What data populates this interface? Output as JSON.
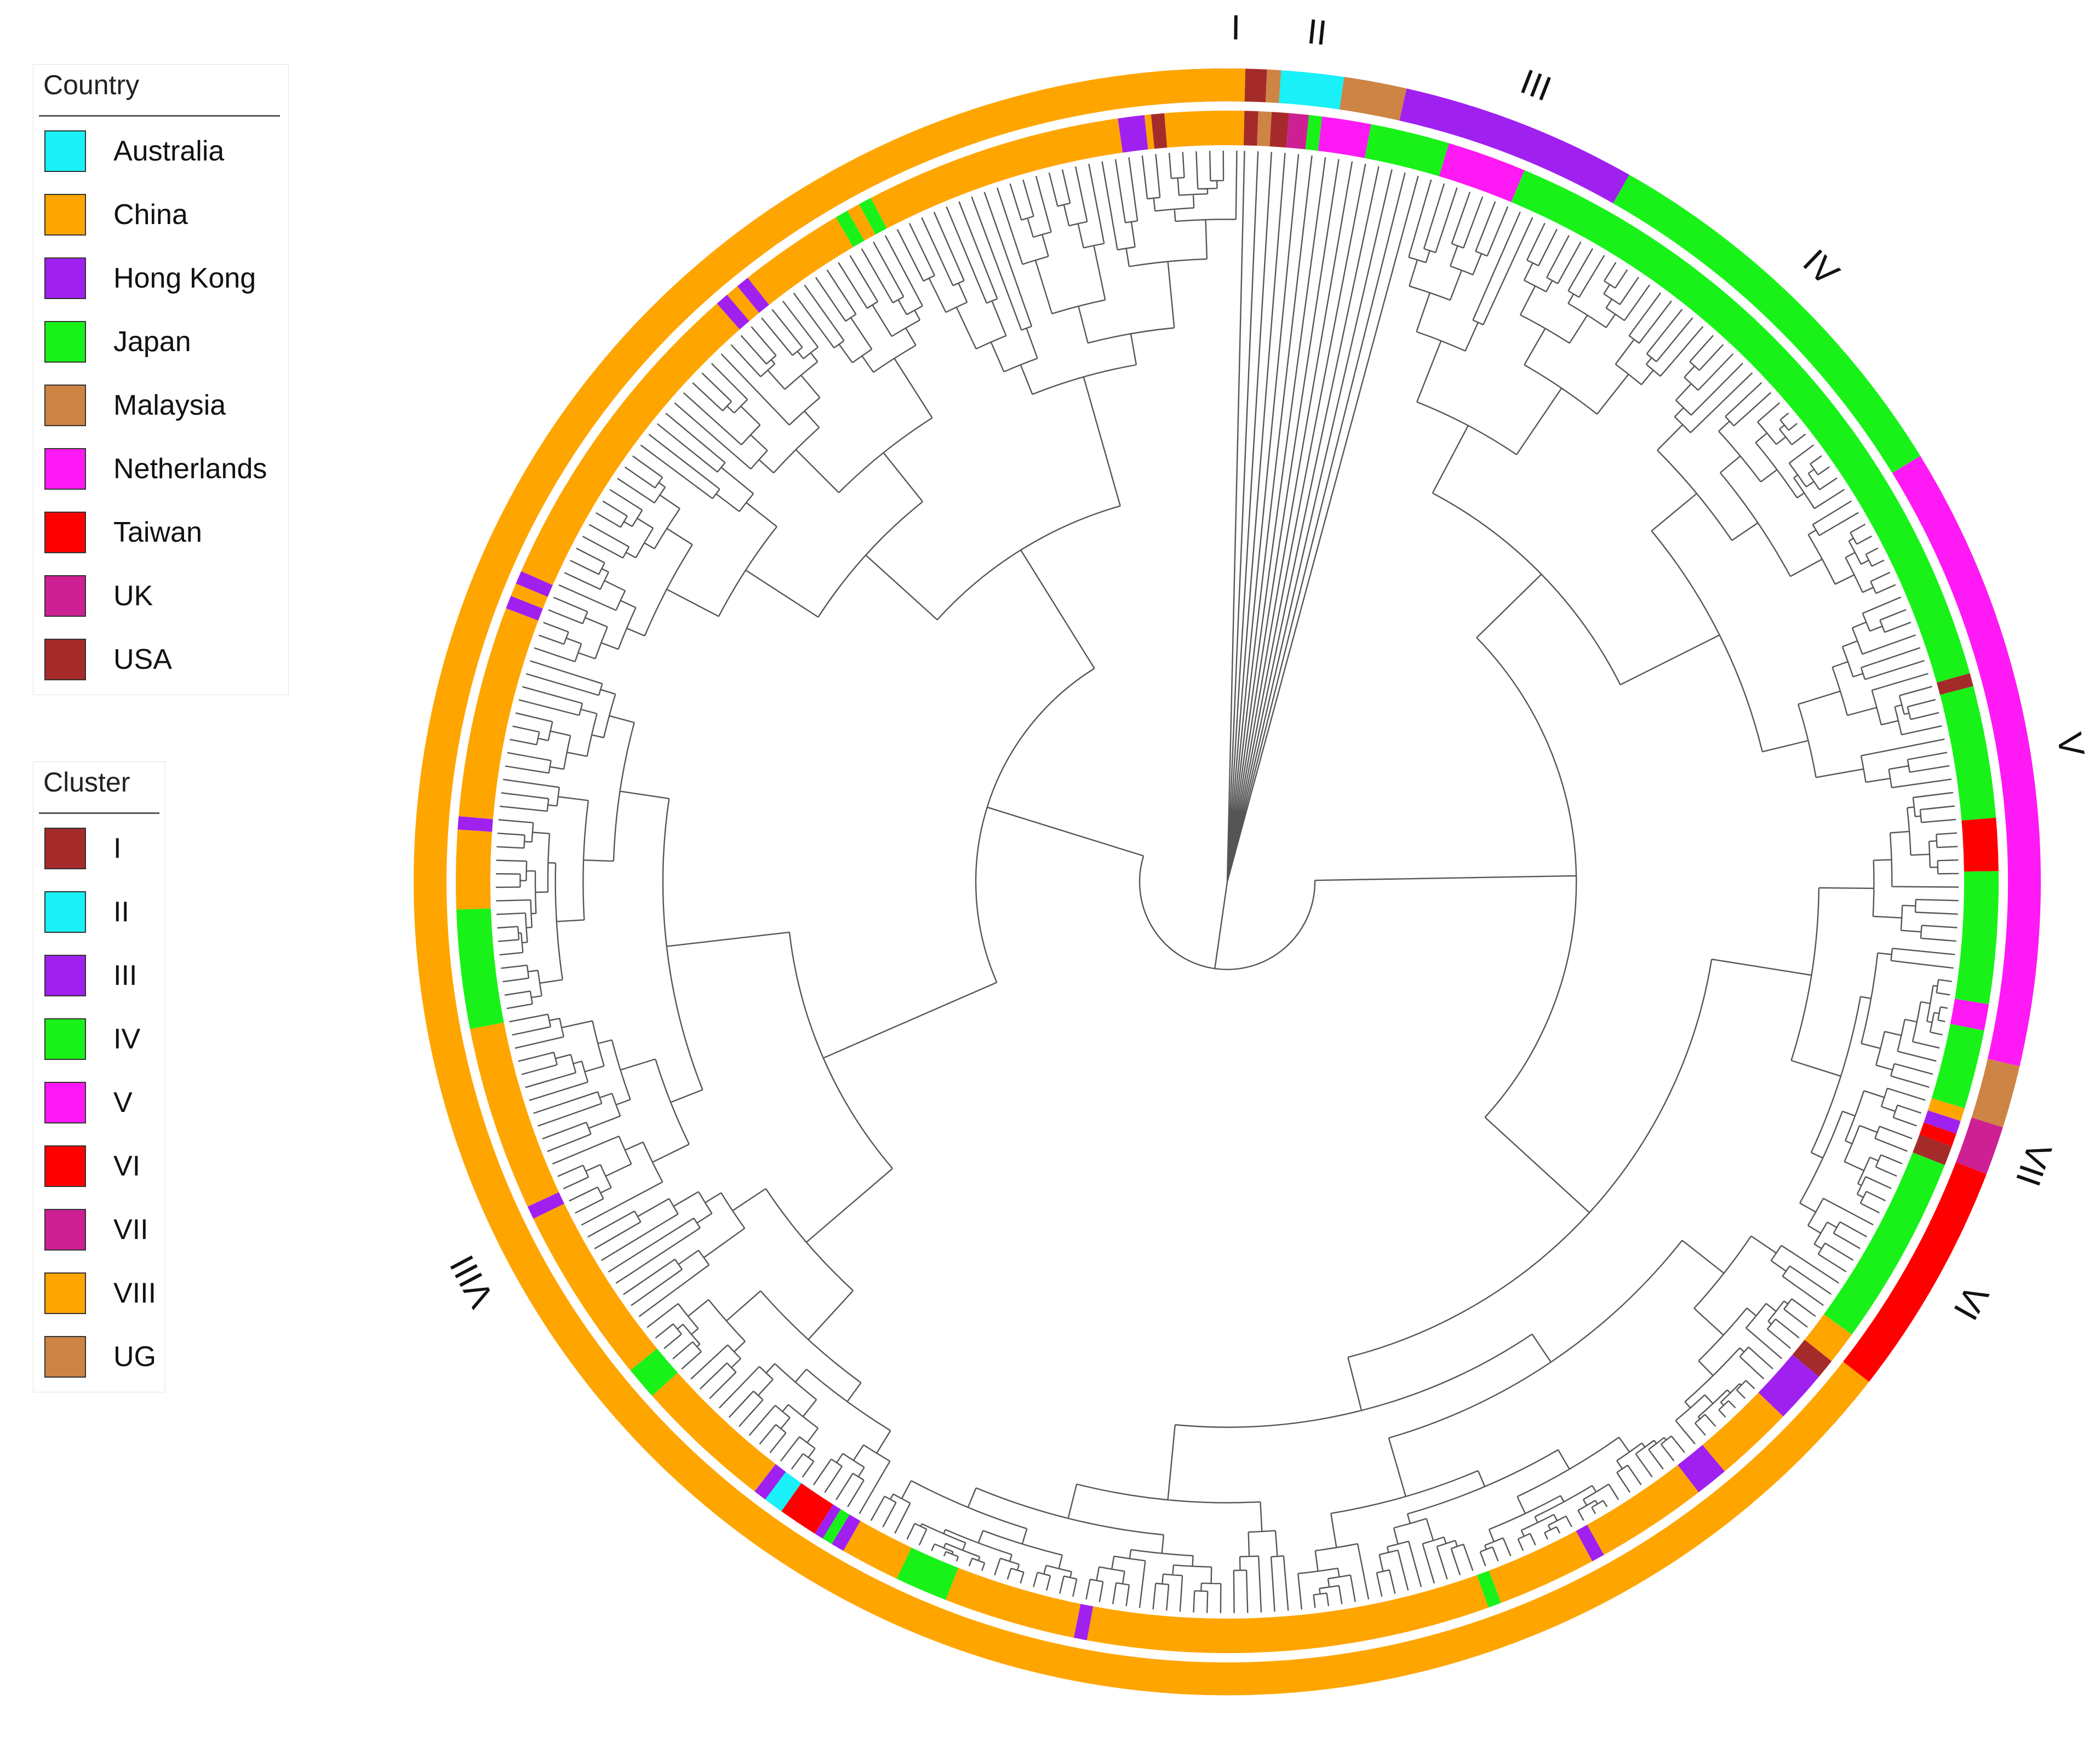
{
  "colors": {
    "cyan": "#19f0f8",
    "orange": "#ffa500",
    "purple": "#a020f0",
    "green": "#19f219",
    "brown": "#cd8444",
    "magenta": "#ff19f5",
    "red": "#ff0000",
    "uk": "#cd2093",
    "usa": "#a52a2a",
    "branch": "#555555"
  },
  "legend_country": {
    "title": "Country",
    "items": [
      {
        "label": "Australia",
        "color": "#19f0f8"
      },
      {
        "label": "China",
        "color": "#ffa500"
      },
      {
        "label": "Hong Kong",
        "color": "#a020f0"
      },
      {
        "label": "Japan",
        "color": "#19f219"
      },
      {
        "label": "Malaysia",
        "color": "#cd8444"
      },
      {
        "label": "Netherlands",
        "color": "#ff19f5"
      },
      {
        "label": "Taiwan",
        "color": "#ff0000"
      },
      {
        "label": "UK",
        "color": "#cd2093"
      },
      {
        "label": "USA",
        "color": "#a52a2a"
      }
    ]
  },
  "legend_cluster": {
    "title": "Cluster",
    "items": [
      {
        "label": "I",
        "color": "#a52a2a"
      },
      {
        "label": "II",
        "color": "#19f0f8"
      },
      {
        "label": "III",
        "color": "#a020f0"
      },
      {
        "label": "IV",
        "color": "#19f219"
      },
      {
        "label": "V",
        "color": "#ff19f5"
      },
      {
        "label": "VI",
        "color": "#ff0000"
      },
      {
        "label": "VII",
        "color": "#cd2093"
      },
      {
        "label": "VIII",
        "color": "#ffa500"
      },
      {
        "label": "UG",
        "color": "#cd8444"
      }
    ]
  },
  "cluster_ring": [
    {
      "label": "UG",
      "start": -10.0,
      "end": -5.5,
      "color": "#cd8444"
    },
    {
      "label": "I",
      "start": -5.5,
      "end": -1.0,
      "color": "#a52a2a"
    },
    {
      "label": "UG",
      "start": -1.0,
      "end": 0.0,
      "color": "#cd8444"
    },
    {
      "label": "II",
      "start": 0.0,
      "end": 4.5,
      "color": "#19f0f8"
    },
    {
      "label": "UG",
      "start": 4.5,
      "end": 9.0,
      "color": "#cd8444"
    },
    {
      "label": "III",
      "start": 9.0,
      "end": 26.0,
      "color": "#a020f0"
    },
    {
      "label": "IV",
      "start": 26.0,
      "end": 55.0,
      "color": "#19f219"
    },
    {
      "label": "V",
      "start": 55.0,
      "end": 100.0,
      "color": "#ff19f5"
    },
    {
      "label": "UG",
      "start": 100.0,
      "end": 104.5,
      "color": "#cd8444"
    },
    {
      "label": "VII",
      "start": 104.5,
      "end": 108.0,
      "color": "#cd2093"
    },
    {
      "label": "VI",
      "start": 108.0,
      "end": 125.0,
      "color": "#ff0000"
    },
    {
      "label": "VIII",
      "start": 125.0,
      "end": 360.0,
      "color": "#ffa500"
    }
  ],
  "country_ring": [
    {
      "start": -3.0,
      "end": -1.5,
      "color": "#a52a2a"
    },
    {
      "start": -1.5,
      "end": -0.5,
      "color": "#cd8444"
    },
    {
      "start": -0.5,
      "end": 0.8,
      "color": "#a52a2a"
    },
    {
      "start": 0.8,
      "end": 2.3,
      "color": "#cd2093"
    },
    {
      "start": 2.3,
      "end": 3.3,
      "color": "#19f219"
    },
    {
      "start": 3.3,
      "end": 7.0,
      "color": "#ff19f5"
    },
    {
      "start": 7.0,
      "end": 13.0,
      "color": "#19f219"
    },
    {
      "start": 13.0,
      "end": 19.0,
      "color": "#ff19f5"
    },
    {
      "start": 19.0,
      "end": 71.0,
      "color": "#19f219"
    },
    {
      "start": 71.0,
      "end": 72.0,
      "color": "#a52a2a"
    },
    {
      "start": 72.0,
      "end": 82.0,
      "color": "#19f219"
    },
    {
      "start": 82.0,
      "end": 86.0,
      "color": "#ff0000"
    },
    {
      "start": 86.0,
      "end": 96.0,
      "color": "#19f219"
    },
    {
      "start": 96.0,
      "end": 98.0,
      "color": "#ff19f5"
    },
    {
      "start": 98.0,
      "end": 104.0,
      "color": "#19f219"
    },
    {
      "start": 104.0,
      "end": 105.0,
      "color": "#ffa500"
    },
    {
      "start": 105.0,
      "end": 106.0,
      "color": "#a020f0"
    },
    {
      "start": 106.0,
      "end": 107.0,
      "color": "#ff0000"
    },
    {
      "start": 107.0,
      "end": 108.5,
      "color": "#a52a2a"
    },
    {
      "start": 108.5,
      "end": 123.0,
      "color": "#19f219"
    },
    {
      "start": 123.0,
      "end": 125.5,
      "color": "#ffa500"
    },
    {
      "start": 125.5,
      "end": 127.0,
      "color": "#a52a2a"
    },
    {
      "start": 127.0,
      "end": 131.0,
      "color": "#a020f0"
    },
    {
      "start": 131.0,
      "end": 137.0,
      "color": "#ffa500"
    },
    {
      "start": 137.0,
      "end": 139.5,
      "color": "#a020f0"
    },
    {
      "start": 139.5,
      "end": 148.0,
      "color": "#ffa500"
    },
    {
      "start": 148.0,
      "end": 149.0,
      "color": "#a020f0"
    },
    {
      "start": 149.0,
      "end": 156.5,
      "color": "#ffa500"
    },
    {
      "start": 156.5,
      "end": 157.5,
      "color": "#19f219"
    },
    {
      "start": 157.5,
      "end": 188.0,
      "color": "#ffa500"
    },
    {
      "start": 188.0,
      "end": 189.0,
      "color": "#a020f0"
    },
    {
      "start": 189.0,
      "end": 199.0,
      "color": "#ffa500"
    },
    {
      "start": 199.0,
      "end": 203.0,
      "color": "#19f219"
    },
    {
      "start": 203.0,
      "end": 207.5,
      "color": "#ffa500"
    },
    {
      "start": 207.5,
      "end": 208.5,
      "color": "#a020f0"
    },
    {
      "start": 208.5,
      "end": 209.3,
      "color": "#19f219"
    },
    {
      "start": 209.3,
      "end": 210.0,
      "color": "#a020f0"
    },
    {
      "start": 210.0,
      "end": 213.0,
      "color": "#ff0000"
    },
    {
      "start": 213.0,
      "end": 214.5,
      "color": "#19f0f8"
    },
    {
      "start": 214.5,
      "end": 215.5,
      "color": "#a020f0"
    },
    {
      "start": 215.5,
      "end": 226.0,
      "color": "#ffa500"
    },
    {
      "start": 226.0,
      "end": 228.5,
      "color": "#19f219"
    },
    {
      "start": 228.5,
      "end": 242.0,
      "color": "#ffa500"
    },
    {
      "start": 242.0,
      "end": 243.0,
      "color": "#a020f0"
    },
    {
      "start": 243.0,
      "end": 257.0,
      "color": "#ffa500"
    },
    {
      "start": 257.0,
      "end": 266.0,
      "color": "#19f219"
    },
    {
      "start": 266.0,
      "end": 272.0,
      "color": "#ffa500"
    },
    {
      "start": 272.0,
      "end": 273.0,
      "color": "#a020f0"
    },
    {
      "start": 273.0,
      "end": 289.0,
      "color": "#ffa500"
    },
    {
      "start": 289.0,
      "end": 290.0,
      "color": "#a020f0"
    },
    {
      "start": 290.0,
      "end": 291.0,
      "color": "#ffa500"
    },
    {
      "start": 291.0,
      "end": 292.0,
      "color": "#a020f0"
    },
    {
      "start": 292.0,
      "end": 317.0,
      "color": "#ffa500"
    },
    {
      "start": 317.0,
      "end": 318.0,
      "color": "#a020f0"
    },
    {
      "start": 318.0,
      "end": 319.0,
      "color": "#ffa500"
    },
    {
      "start": 319.0,
      "end": 320.0,
      "color": "#a020f0"
    },
    {
      "start": 320.0,
      "end": 328.0,
      "color": "#ffa500"
    },
    {
      "start": 328.0,
      "end": 329.0,
      "color": "#19f219"
    },
    {
      "start": 329.0,
      "end": 330.0,
      "color": "#ffa500"
    },
    {
      "start": 330.0,
      "end": 331.0,
      "color": "#19f219"
    },
    {
      "start": 331.0,
      "end": 350.5,
      "color": "#ffa500"
    },
    {
      "start": 350.5,
      "end": 352.5,
      "color": "#a020f0"
    },
    {
      "start": 352.5,
      "end": 353.0,
      "color": "#ffa500"
    },
    {
      "start": 353.0,
      "end": 354.0,
      "color": "#a52a2a"
    },
    {
      "start": 354.0,
      "end": 360.0,
      "color": "#ffa500"
    }
  ],
  "tree": {
    "leaves": 340,
    "arc_start": -3.0,
    "arc_end": 360.0
  }
}
